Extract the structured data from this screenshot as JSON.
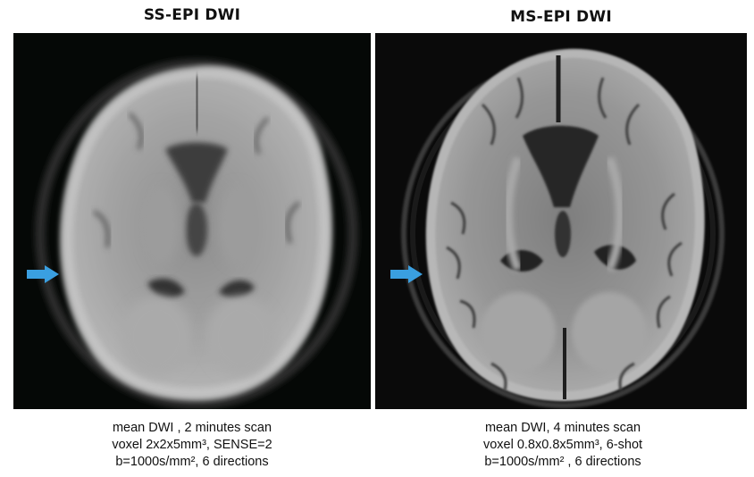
{
  "panels": {
    "left": {
      "title": "SS-EPI DWI",
      "caption": {
        "line1": "mean DWI , 2 minutes scan",
        "line2": "voxel 2x2x5mm³, SENSE=2",
        "line3": "b=1000s/mm², 6 directions"
      }
    },
    "right": {
      "title": "MS-EPI DWI",
      "caption": {
        "line1": "mean DWI, 4 minutes scan",
        "line2": "voxel 0.8x0.8x5mm³, 6-shot",
        "line3": "b=1000s/mm² , 6 directions"
      }
    }
  },
  "colors": {
    "arrow": "#3a9fe0",
    "background": "#ffffff",
    "mri_background_left": "#050806",
    "mri_background_right": "#0a0a0a"
  },
  "icons": [
    "arrow-right-icon"
  ]
}
